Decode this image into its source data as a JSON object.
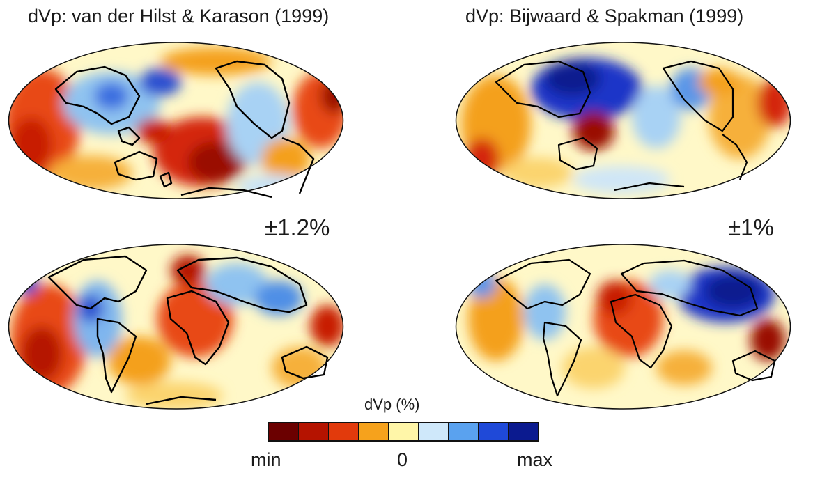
{
  "titles": {
    "left": "dVp: van der Hilst & Karason (1999)",
    "right": "dVp:  Bijwaard & Spakman (1999)"
  },
  "amplitudes": {
    "left": "±1.2%",
    "right": "±1%"
  },
  "colorbar": {
    "label": "dVp (%)",
    "tick_min": "min",
    "tick_zero": "0",
    "tick_max": "max",
    "colors": [
      "#6b0000",
      "#b51300",
      "#e23a0c",
      "#f6a21c",
      "#fff6a8",
      "#cfe8fa",
      "#5aa2ef",
      "#1f49d8",
      "#0b1a8f"
    ]
  },
  "map_colors": {
    "slow_dark": "#7a0000",
    "slow": "#d62a0a",
    "slow_light": "#f7a022",
    "neutral": "#fff8c8",
    "fast_light": "#cfe6f7",
    "fast": "#4f8fe6",
    "fast_dark": "#1a2fb8",
    "coastline": "#000000"
  },
  "maps": [
    {
      "id": "hilst-pacific",
      "view": "pacific-centered"
    },
    {
      "id": "bijwaard-pacific",
      "view": "pacific-centered"
    },
    {
      "id": "hilst-atlantic",
      "view": "atlantic-centered"
    },
    {
      "id": "bijwaard-atlantic",
      "view": "atlantic-centered"
    }
  ]
}
